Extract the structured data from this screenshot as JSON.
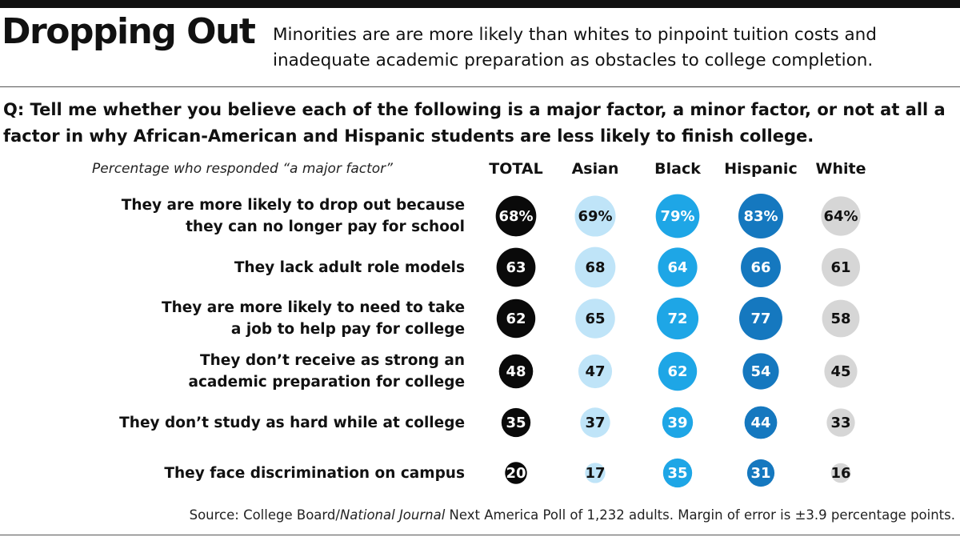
{
  "title": "Dropping Out",
  "subtitle": "Minorities are  are more likely than whites to pinpoint tuition costs and inadequate academic preparation as obstacles to college completion.",
  "question": "Q: Tell me whether you believe each of the following is a major factor, a minor factor, or not at all a factor in why African-American and Hispanic students are less likely to finish college.",
  "note": "Percentage who responded “a major factor”",
  "source": {
    "prefix": "Source: College Board/",
    "publication": "National Journal",
    "suffix": " Next America Poll of 1,232 adults. Margin of error is ±3.9 percentage points."
  },
  "colors": {
    "TOTAL": "#0a0a0a",
    "Asian": "#bfe4f8",
    "Black": "#1ea6e6",
    "Hispanic": "#1578bf",
    "White": "#d6d6d6",
    "text_dark": "#111111",
    "text_light": "#ffffff"
  },
  "chart_data": {
    "type": "bubble-table",
    "title": "Dropping Out",
    "value_unit": "%",
    "columns": [
      "TOTAL",
      "Asian",
      "Black",
      "Hispanic",
      "White"
    ],
    "rows": [
      {
        "label": [
          "They are more likely to drop out because",
          "they can no longer pay for school"
        ],
        "values": [
          68,
          69,
          79,
          83,
          64
        ],
        "display": [
          "68%",
          "69%",
          "79%",
          "83%",
          "64%"
        ]
      },
      {
        "label": [
          "They lack adult role models"
        ],
        "values": [
          63,
          68,
          64,
          66,
          61
        ],
        "display": [
          "63",
          "68",
          "64",
          "66",
          "61"
        ]
      },
      {
        "label": [
          "They are more likely to need to take",
          "a job to help pay for college"
        ],
        "values": [
          62,
          65,
          72,
          77,
          58
        ],
        "display": [
          "62",
          "65",
          "72",
          "77",
          "58"
        ]
      },
      {
        "label": [
          "They don’t receive as strong an",
          "academic preparation for college"
        ],
        "values": [
          48,
          47,
          62,
          54,
          45
        ],
        "display": [
          "48",
          "47",
          "62",
          "54",
          "45"
        ]
      },
      {
        "label": [
          "They don’t study as hard while at college"
        ],
        "values": [
          35,
          37,
          39,
          44,
          33
        ],
        "display": [
          "35",
          "37",
          "39",
          "44",
          "33"
        ]
      },
      {
        "label": [
          "They face discrimination on campus"
        ],
        "values": [
          20,
          17,
          35,
          31,
          16
        ],
        "display": [
          "20",
          "17",
          "35",
          "31",
          "16"
        ]
      }
    ]
  }
}
